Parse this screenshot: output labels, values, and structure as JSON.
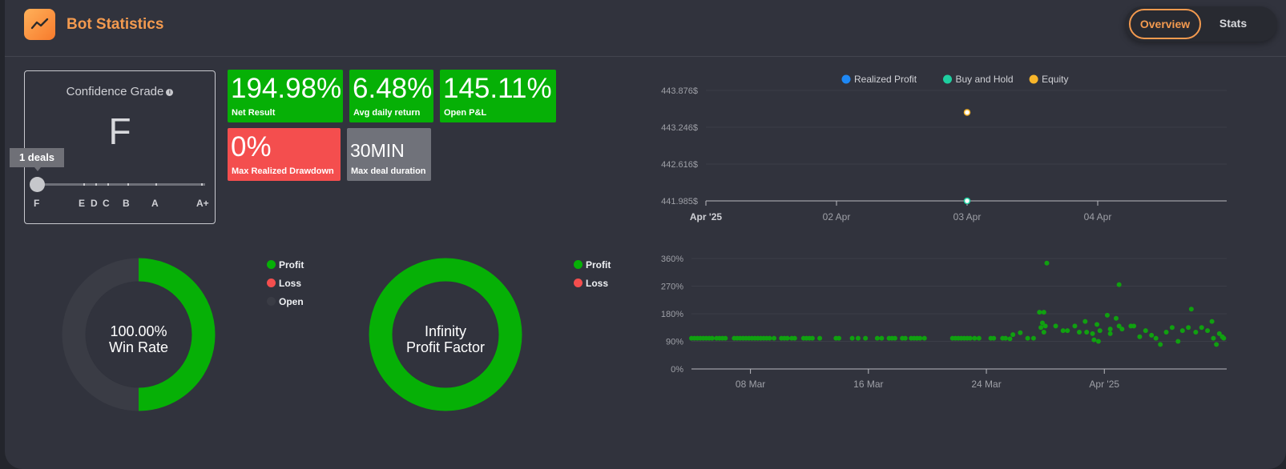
{
  "header": {
    "title": "Bot Statistics",
    "tabs": [
      "Overview",
      "Stats"
    ],
    "active_tab": "Overview"
  },
  "confidence": {
    "title": "Confidence Grade",
    "grade": "F",
    "tooltip": "1 deals",
    "scale": [
      "F",
      "E",
      "D",
      "C",
      "B",
      "A",
      "A+"
    ]
  },
  "metrics": [
    {
      "value": "194.98%",
      "label": "Net Result",
      "color": "#06b006"
    },
    {
      "value": "6.48%",
      "label": "Avg daily return",
      "color": "#06b006"
    },
    {
      "value": "145.11%",
      "label": "Open P&L",
      "color": "#06b006"
    },
    {
      "value": "0%",
      "label": "Max Realized Drawdown",
      "color": "#f44e4e"
    },
    {
      "value": "30MIN",
      "label": "Max deal duration",
      "color": "#70727a"
    }
  ],
  "winrate": {
    "line1": "100.00%",
    "line2": "Win Rate",
    "profit_fraction": 0.5,
    "legend": [
      {
        "name": "Profit",
        "color": "#06b006"
      },
      {
        "name": "Loss",
        "color": "#f44e4e"
      },
      {
        "name": "Open",
        "color": "#3a3c45"
      }
    ]
  },
  "profit_factor": {
    "line1": "Infinity",
    "line2": "Profit Factor",
    "legend": [
      {
        "name": "Profit",
        "color": "#06b006"
      },
      {
        "name": "Loss",
        "color": "#f44e4e"
      }
    ]
  },
  "chart_data": [
    {
      "type": "scatter",
      "legend_position": "top-center",
      "series": [
        {
          "name": "Realized Profit",
          "color": "#1e88f5",
          "points": []
        },
        {
          "name": "Buy and Hold",
          "color": "#1ecfa0",
          "points": [
            {
              "x": "03 Apr",
              "y": 441.985
            }
          ]
        },
        {
          "name": "Equity",
          "color": "#f7b52a",
          "points": [
            {
              "x": "03 Apr",
              "y": 443.5
            }
          ]
        }
      ],
      "y_ticks": [
        "443.876$",
        "443.246$",
        "442.616$",
        "441.985$"
      ],
      "x_ticks": [
        "Apr '25",
        "02 Apr",
        "03 Apr",
        "04 Apr"
      ],
      "ylim": [
        441.985,
        443.876
      ],
      "grid": true
    },
    {
      "type": "scatter",
      "series": [
        {
          "color": "#10a010",
          "points": [
            [
              4.0,
              100
            ],
            [
              4.2,
              100
            ],
            [
              4.4,
              100
            ],
            [
              4.6,
              100
            ],
            [
              4.8,
              100
            ],
            [
              5.0,
              100
            ],
            [
              5.2,
              100
            ],
            [
              5.4,
              100
            ],
            [
              5.7,
              100
            ],
            [
              5.9,
              100
            ],
            [
              6.1,
              100
            ],
            [
              6.3,
              100
            ],
            [
              6.9,
              100
            ],
            [
              7.1,
              100
            ],
            [
              7.3,
              100
            ],
            [
              7.5,
              100
            ],
            [
              7.7,
              100
            ],
            [
              7.9,
              100
            ],
            [
              8.1,
              100
            ],
            [
              8.3,
              100
            ],
            [
              8.5,
              100
            ],
            [
              8.7,
              100
            ],
            [
              8.9,
              100
            ],
            [
              9.1,
              100
            ],
            [
              9.3,
              100
            ],
            [
              9.6,
              100
            ],
            [
              10.1,
              100
            ],
            [
              10.3,
              100
            ],
            [
              10.5,
              100
            ],
            [
              10.8,
              100
            ],
            [
              11.0,
              100
            ],
            [
              11.6,
              100
            ],
            [
              11.8,
              100
            ],
            [
              12.0,
              100
            ],
            [
              12.2,
              100
            ],
            [
              12.7,
              100
            ],
            [
              13.8,
              100
            ],
            [
              14.0,
              100
            ],
            [
              14.9,
              100
            ],
            [
              15.3,
              100
            ],
            [
              15.8,
              100
            ],
            [
              16.6,
              100
            ],
            [
              16.9,
              100
            ],
            [
              17.4,
              100
            ],
            [
              17.6,
              100
            ],
            [
              17.8,
              100
            ],
            [
              18.3,
              100
            ],
            [
              18.5,
              100
            ],
            [
              18.9,
              100
            ],
            [
              19.1,
              100
            ],
            [
              19.3,
              100
            ],
            [
              19.5,
              100
            ],
            [
              19.8,
              100
            ],
            [
              21.7,
              100
            ],
            [
              21.9,
              100
            ],
            [
              22.1,
              100
            ],
            [
              22.3,
              100
            ],
            [
              22.5,
              100
            ],
            [
              22.7,
              100
            ],
            [
              22.9,
              100
            ],
            [
              23.2,
              100
            ],
            [
              23.5,
              100
            ],
            [
              24.3,
              100
            ],
            [
              24.5,
              100
            ],
            [
              25.1,
              100
            ],
            [
              25.3,
              100
            ],
            [
              25.6,
              98
            ],
            [
              25.8,
              112
            ],
            [
              26.3,
              118
            ],
            [
              26.8,
              100
            ],
            [
              27.2,
              100
            ],
            [
              27.6,
              185
            ],
            [
              27.9,
              185
            ],
            [
              27.9,
              120
            ],
            [
              27.7,
              135
            ],
            [
              27.8,
              150
            ],
            [
              28.0,
              140
            ],
            [
              28.1,
              345
            ],
            [
              28.7,
              140
            ],
            [
              29.2,
              125
            ],
            [
              29.5,
              125
            ],
            [
              30.0,
              140
            ],
            [
              30.3,
              120
            ],
            [
              30.8,
              120
            ],
            [
              30.7,
              155
            ],
            [
              31.2,
              115
            ],
            [
              31.6,
              90
            ],
            [
              31.3,
              95
            ],
            [
              31.5,
              145
            ],
            [
              31.7,
              125
            ],
            [
              32.2,
              175
            ],
            [
              32.4,
              115
            ],
            [
              32.4,
              130
            ],
            [
              32.8,
              165
            ],
            [
              33.0,
              140
            ],
            [
              33.2,
              130
            ],
            [
              33.0,
              275
            ],
            [
              33.8,
              140
            ],
            [
              34.0,
              140
            ],
            [
              34.4,
              105
            ],
            [
              34.8,
              125
            ],
            [
              35.2,
              110
            ],
            [
              35.5,
              100
            ],
            [
              35.8,
              80
            ],
            [
              36.2,
              120
            ],
            [
              36.6,
              135
            ],
            [
              37.0,
              90
            ],
            [
              37.3,
              125
            ],
            [
              37.7,
              135
            ],
            [
              37.9,
              195
            ],
            [
              38.2,
              120
            ],
            [
              38.6,
              135
            ],
            [
              39.0,
              125
            ],
            [
              39.3,
              155
            ],
            [
              39.4,
              100
            ],
            [
              39.6,
              80
            ],
            [
              39.8,
              115
            ],
            [
              40.0,
              105
            ],
            [
              40.1,
              100
            ]
          ]
        }
      ],
      "y_ticks": [
        "360%",
        "270%",
        "180%",
        "90%",
        "0%"
      ],
      "x_ticks": [
        {
          "label": "08 Mar",
          "x": 8
        },
        {
          "label": "16 Mar",
          "x": 16
        },
        {
          "label": "24 Mar",
          "x": 24
        },
        {
          "label": "Apr '25",
          "x": 32
        }
      ],
      "xlim": [
        4,
        40.3
      ],
      "ylim": [
        0,
        360
      ],
      "grid": true
    }
  ]
}
